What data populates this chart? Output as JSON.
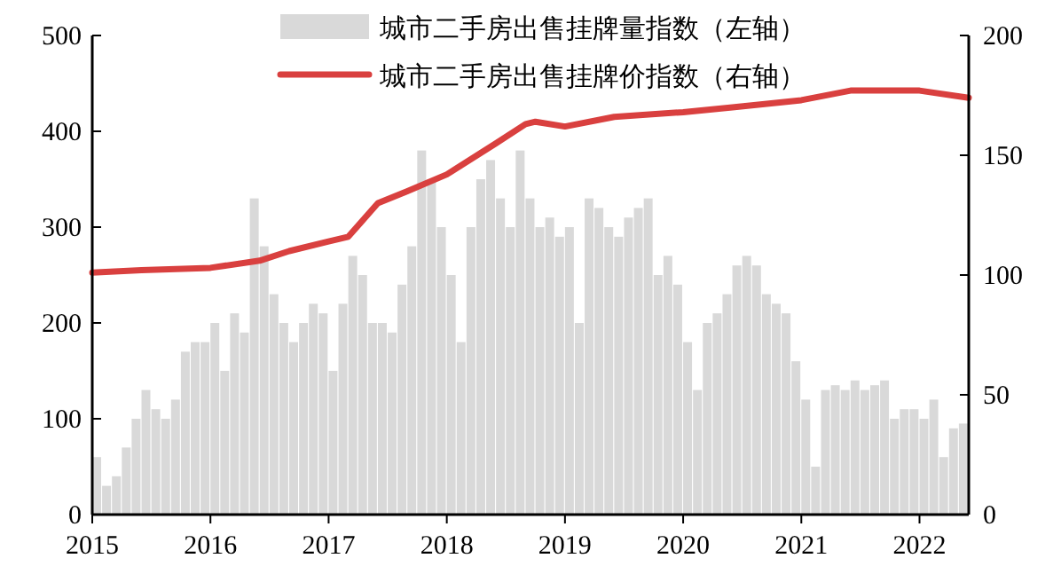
{
  "chart_data": {
    "type": "bar",
    "legend": "top",
    "x": [
      "2015-01",
      "2015-02",
      "2015-03",
      "2015-04",
      "2015-05",
      "2015-06",
      "2015-07",
      "2015-08",
      "2015-09",
      "2015-10",
      "2015-11",
      "2015-12",
      "2016-01",
      "2016-02",
      "2016-03",
      "2016-04",
      "2016-05",
      "2016-06",
      "2016-07",
      "2016-08",
      "2016-09",
      "2016-10",
      "2016-11",
      "2016-12",
      "2017-01",
      "2017-02",
      "2017-03",
      "2017-04",
      "2017-05",
      "2017-06",
      "2017-07",
      "2017-08",
      "2017-09",
      "2017-10",
      "2017-11",
      "2017-12",
      "2018-01",
      "2018-02",
      "2018-03",
      "2018-04",
      "2018-05",
      "2018-06",
      "2018-07",
      "2018-08",
      "2018-09",
      "2018-10",
      "2018-11",
      "2018-12",
      "2019-01",
      "2019-02",
      "2019-03",
      "2019-04",
      "2019-05",
      "2019-06",
      "2019-07",
      "2019-08",
      "2019-09",
      "2019-10",
      "2019-11",
      "2019-12",
      "2020-01",
      "2020-02",
      "2020-03",
      "2020-04",
      "2020-05",
      "2020-06",
      "2020-07",
      "2020-08",
      "2020-09",
      "2020-10",
      "2020-11",
      "2020-12",
      "2021-01",
      "2021-02",
      "2021-03",
      "2021-04",
      "2021-05",
      "2021-06",
      "2021-07",
      "2021-08",
      "2021-09",
      "2021-10",
      "2021-11",
      "2021-12",
      "2022-01",
      "2022-02",
      "2022-03",
      "2022-04",
      "2022-05"
    ],
    "series": [
      {
        "name": "城市二手房出售挂牌量指数（左轴）",
        "color": "#d9d9d9",
        "values": [
          60,
          30,
          40,
          70,
          100,
          130,
          110,
          100,
          120,
          170,
          180,
          180,
          200,
          150,
          210,
          190,
          330,
          280,
          230,
          200,
          180,
          200,
          220,
          210,
          150,
          220,
          270,
          250,
          200,
          200,
          190,
          240,
          280,
          380,
          350,
          300,
          250,
          180,
          300,
          350,
          370,
          330,
          300,
          380,
          330,
          300,
          310,
          290,
          300,
          200,
          330,
          320,
          300,
          290,
          310,
          320,
          330,
          250,
          270,
          240,
          180,
          130,
          200,
          210,
          230,
          260,
          270,
          260,
          230,
          220,
          210,
          160,
          120,
          50,
          130,
          135,
          130,
          140,
          130,
          135,
          140,
          100,
          110,
          110,
          100,
          120,
          60,
          90,
          95
        ]
      },
      {
        "name": "城市二手房出售挂牌价指数（右轴）",
        "type": "line",
        "axis": "y2",
        "color": "#d9403f",
        "x": [
          "2015-01",
          "2015-06",
          "2016-01",
          "2016-06",
          "2016-09",
          "2017-01",
          "2017-03",
          "2017-06",
          "2017-09",
          "2018-01",
          "2018-06",
          "2018-09",
          "2018-10",
          "2019-01",
          "2019-06",
          "2020-01",
          "2020-06",
          "2021-01",
          "2021-06",
          "2022-01",
          "2022-06"
        ],
        "values": [
          101,
          102,
          103,
          106,
          110,
          114,
          116,
          130,
          135,
          142,
          155,
          163,
          164,
          162,
          166,
          168,
          170,
          173,
          177,
          177,
          174
        ]
      }
    ],
    "xlim": [
      "2015-01",
      "2022-06"
    ],
    "xticks": [
      "2015",
      "2016",
      "2017",
      "2018",
      "2019",
      "2020",
      "2021",
      "2022"
    ],
    "ylim": [
      0,
      500
    ],
    "yticks": [
      0,
      100,
      200,
      300,
      400,
      500
    ],
    "y2lim": [
      0,
      200
    ],
    "y2ticks": [
      0,
      50,
      100,
      150,
      200
    ]
  }
}
